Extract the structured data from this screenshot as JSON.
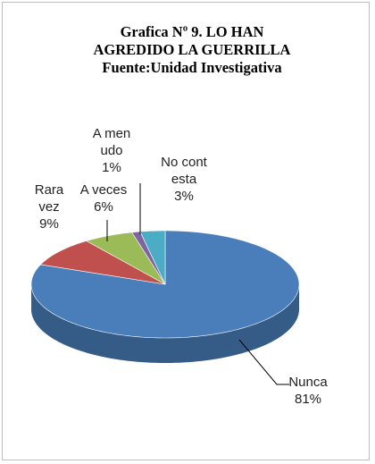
{
  "chart_data": {
    "type": "pie",
    "title": "Grafica Nº 9. LO HAN AGREDIDO LA  GUERRILLA",
    "subtitle": "Fuente:Unidad Investigativa",
    "categories": [
      "Nunca",
      "Rara vez",
      "A veces",
      "A menudo",
      "No contesta"
    ],
    "values": [
      81,
      9,
      6,
      1,
      3
    ],
    "value_labels": [
      "81%",
      "9%",
      "6%",
      "1%",
      "3%"
    ],
    "colors": [
      "#4a7ebb",
      "#c0504d",
      "#9bbb59",
      "#8064a2",
      "#4bacc6"
    ]
  }
}
